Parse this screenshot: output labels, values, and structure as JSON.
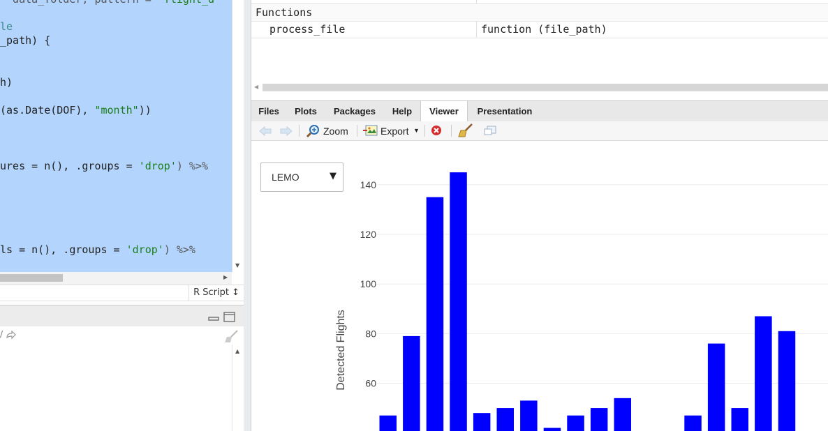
{
  "editor": {
    "lines": [
      [
        {
          "t": "  data_folder, pattern = ",
          "c": "op"
        },
        {
          "t": "\"flight_d",
          "c": "str"
        }
      ],
      [
        {
          "t": "le",
          "c": "cmt"
        }
      ],
      [
        {
          "t": "_path) {",
          "c": ""
        }
      ],
      [
        {
          "t": "h)",
          "c": ""
        }
      ],
      [
        {
          "t": "(as.Date(DOF), ",
          "c": ""
        },
        {
          "t": "\"month\"",
          "c": "str"
        },
        {
          "t": "))",
          "c": ""
        }
      ],
      [
        {
          "t": "ures = n(), .groups = ",
          "c": ""
        },
        {
          "t": "'drop'",
          "c": "str"
        },
        {
          "t": ") %>%",
          "c": "op"
        }
      ],
      [
        {
          "t": "ls = n(), .groups = ",
          "c": ""
        },
        {
          "t": "'drop'",
          "c": "str"
        },
        {
          "t": ") %>%",
          "c": "op"
        }
      ]
    ],
    "file_type": "R Script ↕"
  },
  "environment": {
    "section": "Functions",
    "rows": [
      {
        "name": "process_file",
        "value": "function (file_path)"
      }
    ]
  },
  "viewer": {
    "tabs": [
      "Files",
      "Plots",
      "Packages",
      "Help",
      "Viewer",
      "Presentation"
    ],
    "active_tab": "Viewer",
    "toolbar": {
      "zoom": "Zoom",
      "export": "Export"
    },
    "dropdown": {
      "selected": "LEMO"
    }
  },
  "colors": {
    "bar": "#0000ff",
    "editor_selection": "#b3d4fc"
  },
  "chart_data": {
    "type": "bar",
    "ylabel": "Detected Flights",
    "yticks": [
      60,
      80,
      100,
      120,
      140
    ],
    "ylim": [
      42,
      150
    ],
    "grid": true,
    "values": [
      47,
      79,
      135,
      145,
      48,
      50,
      53,
      42,
      47,
      50,
      54,
      null,
      null,
      47,
      76,
      50,
      87,
      81
    ]
  }
}
